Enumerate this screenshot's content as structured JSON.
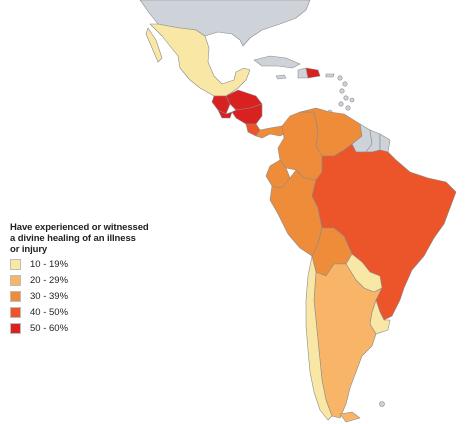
{
  "legend": {
    "title_lines": [
      "Have experienced or witnessed",
      "a divine healing of an illness",
      "or injury"
    ],
    "items": [
      {
        "label": "10 - 19%",
        "color": "#f9e7a6"
      },
      {
        "label": "20 - 29%",
        "color": "#f9b567"
      },
      {
        "label": "30 - 39%",
        "color": "#ef8c3a"
      },
      {
        "label": "40 - 50%",
        "color": "#ec5529"
      },
      {
        "label": "50 - 60%",
        "color": "#d9211f"
      }
    ]
  },
  "colors": {
    "no_data": "#cdd3d8",
    "border": "#8a8a8a"
  },
  "regions": [
    {
      "name": "United States",
      "category": "no data"
    },
    {
      "name": "Mexico",
      "category": "10 - 19%"
    },
    {
      "name": "Guatemala",
      "category": "50 - 60%"
    },
    {
      "name": "Honduras",
      "category": "50 - 60%"
    },
    {
      "name": "El Salvador",
      "category": "50 - 60%"
    },
    {
      "name": "Nicaragua",
      "category": "50 - 60%"
    },
    {
      "name": "Costa Rica",
      "category": "40 - 50%"
    },
    {
      "name": "Panama",
      "category": "30 - 39%"
    },
    {
      "name": "Cuba",
      "category": "no data"
    },
    {
      "name": "Haiti",
      "category": "no data"
    },
    {
      "name": "Dominican Republic",
      "category": "50 - 60%"
    },
    {
      "name": "Puerto Rico",
      "category": "no data"
    },
    {
      "name": "Colombia",
      "category": "30 - 39%"
    },
    {
      "name": "Venezuela",
      "category": "30 - 39%"
    },
    {
      "name": "Guyana",
      "category": "no data"
    },
    {
      "name": "Suriname",
      "category": "no data"
    },
    {
      "name": "French Guiana",
      "category": "no data"
    },
    {
      "name": "Ecuador",
      "category": "30 - 39%"
    },
    {
      "name": "Peru",
      "category": "30 - 39%"
    },
    {
      "name": "Brazil",
      "category": "40 - 50%"
    },
    {
      "name": "Bolivia",
      "category": "30 - 39%"
    },
    {
      "name": "Paraguay",
      "category": "10 - 19%"
    },
    {
      "name": "Chile",
      "category": "10 - 19%"
    },
    {
      "name": "Argentina",
      "category": "20 - 29%"
    },
    {
      "name": "Uruguay",
      "category": "10 - 19%"
    }
  ]
}
